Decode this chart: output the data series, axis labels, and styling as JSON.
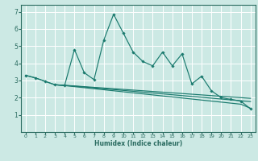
{
  "xlabel": "Humidex (Indice chaleur)",
  "bg_color": "#cce9e4",
  "plot_bg_color": "#cce9e4",
  "grid_color": "#ffffff",
  "line_color": "#1a7a6e",
  "axis_color": "#2a6b60",
  "xlim": [
    -0.5,
    23.5
  ],
  "ylim": [
    0,
    7.4
  ],
  "xticks": [
    0,
    1,
    2,
    3,
    4,
    5,
    6,
    7,
    8,
    9,
    10,
    11,
    12,
    13,
    14,
    15,
    16,
    17,
    18,
    19,
    20,
    21,
    22,
    23
  ],
  "yticks": [
    1,
    2,
    3,
    4,
    5,
    6,
    7
  ],
  "main_x": [
    0,
    1,
    2,
    3,
    4,
    5,
    6,
    7,
    8,
    9,
    10,
    11,
    12,
    13,
    14,
    15,
    16,
    17,
    18,
    19,
    20,
    21,
    22,
    23
  ],
  "main_y": [
    3.3,
    3.15,
    2.95,
    2.75,
    2.72,
    4.8,
    3.45,
    3.05,
    5.35,
    6.85,
    5.75,
    4.65,
    4.1,
    3.85,
    4.65,
    3.85,
    4.55,
    2.8,
    3.25,
    2.4,
    2.0,
    1.9,
    1.8,
    1.35
  ],
  "flat1_x": [
    0,
    1,
    2,
    3,
    4,
    5,
    6,
    7,
    8,
    9,
    10,
    11,
    12,
    13,
    14,
    15,
    16,
    17,
    18,
    19,
    20,
    21,
    22,
    23
  ],
  "flat1_y": [
    3.3,
    3.15,
    2.95,
    2.75,
    2.72,
    2.68,
    2.64,
    2.6,
    2.56,
    2.52,
    2.48,
    2.44,
    2.4,
    2.36,
    2.32,
    2.28,
    2.24,
    2.2,
    2.16,
    2.12,
    2.08,
    2.04,
    2.0,
    1.96
  ],
  "flat2_x": [
    3,
    4,
    5,
    6,
    7,
    8,
    9,
    10,
    11,
    12,
    13,
    14,
    15,
    16,
    17,
    18,
    19,
    20,
    21,
    22,
    23
  ],
  "flat2_y": [
    2.75,
    2.71,
    2.67,
    2.62,
    2.57,
    2.52,
    2.47,
    2.42,
    2.37,
    2.32,
    2.27,
    2.22,
    2.17,
    2.12,
    2.07,
    2.02,
    1.97,
    1.92,
    1.87,
    1.82,
    1.77
  ],
  "flat3_x": [
    3,
    4,
    5,
    6,
    7,
    8,
    9,
    10,
    11,
    12,
    13,
    14,
    15,
    16,
    17,
    18,
    19,
    20,
    21,
    22,
    23
  ],
  "flat3_y": [
    2.75,
    2.7,
    2.64,
    2.58,
    2.52,
    2.46,
    2.4,
    2.34,
    2.28,
    2.22,
    2.16,
    2.1,
    2.04,
    1.98,
    1.92,
    1.86,
    1.8,
    1.74,
    1.68,
    1.62,
    1.38
  ]
}
